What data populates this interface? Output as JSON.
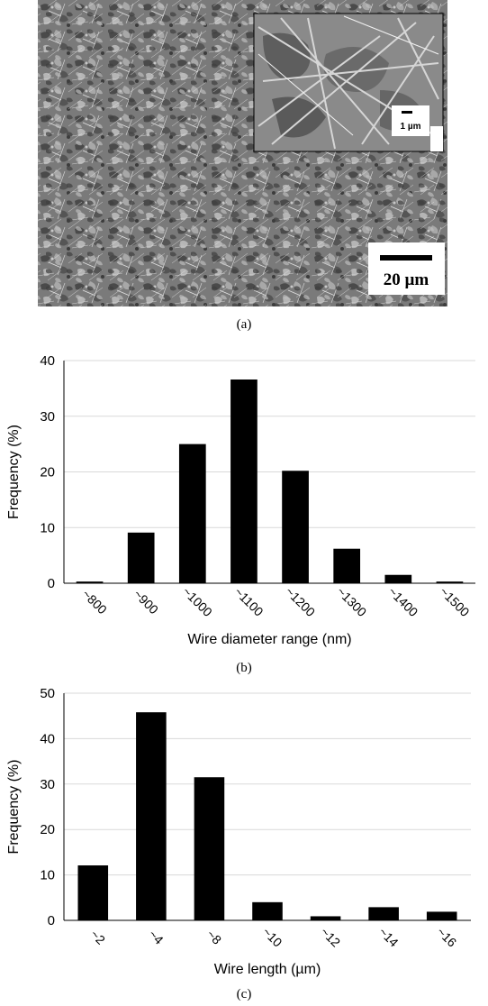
{
  "figure": {
    "panel_a": {
      "caption": "(a)",
      "inset_scale_label": "1 µm",
      "main_scale_label": "20 µm"
    },
    "panel_b": {
      "caption": "(b)"
    },
    "panel_c": {
      "caption": "(c)"
    }
  },
  "colors": {
    "bar": "#000000",
    "grid": "#d9d9d9",
    "axis": "#000000"
  },
  "chart_data": [
    {
      "type": "bar",
      "categories": [
        "~800",
        "~900",
        "~1000",
        "~1100",
        "~1200",
        "~1300",
        "~1400",
        "~1500"
      ],
      "values": [
        0.3,
        9.1,
        25.0,
        36.6,
        20.2,
        6.2,
        1.5,
        0.3
      ],
      "title": "",
      "xlabel": "Wire diameter  range  (nm)",
      "ylabel": "Frequency  (%)",
      "ylim": [
        0,
        40
      ],
      "yticks": [
        0,
        10,
        20,
        30,
        40
      ],
      "grid": true
    },
    {
      "type": "bar",
      "categories": [
        "~2",
        "~4",
        "~8",
        "~10",
        "~12",
        "~14",
        "~16"
      ],
      "values": [
        12.1,
        45.8,
        31.5,
        4.0,
        0.9,
        2.9,
        1.9
      ],
      "title": "",
      "xlabel": "Wire length (µm)",
      "ylabel": "Frequency  (%)",
      "ylim": [
        0,
        50
      ],
      "yticks": [
        0,
        10,
        20,
        30,
        40,
        50
      ],
      "grid": true
    }
  ]
}
